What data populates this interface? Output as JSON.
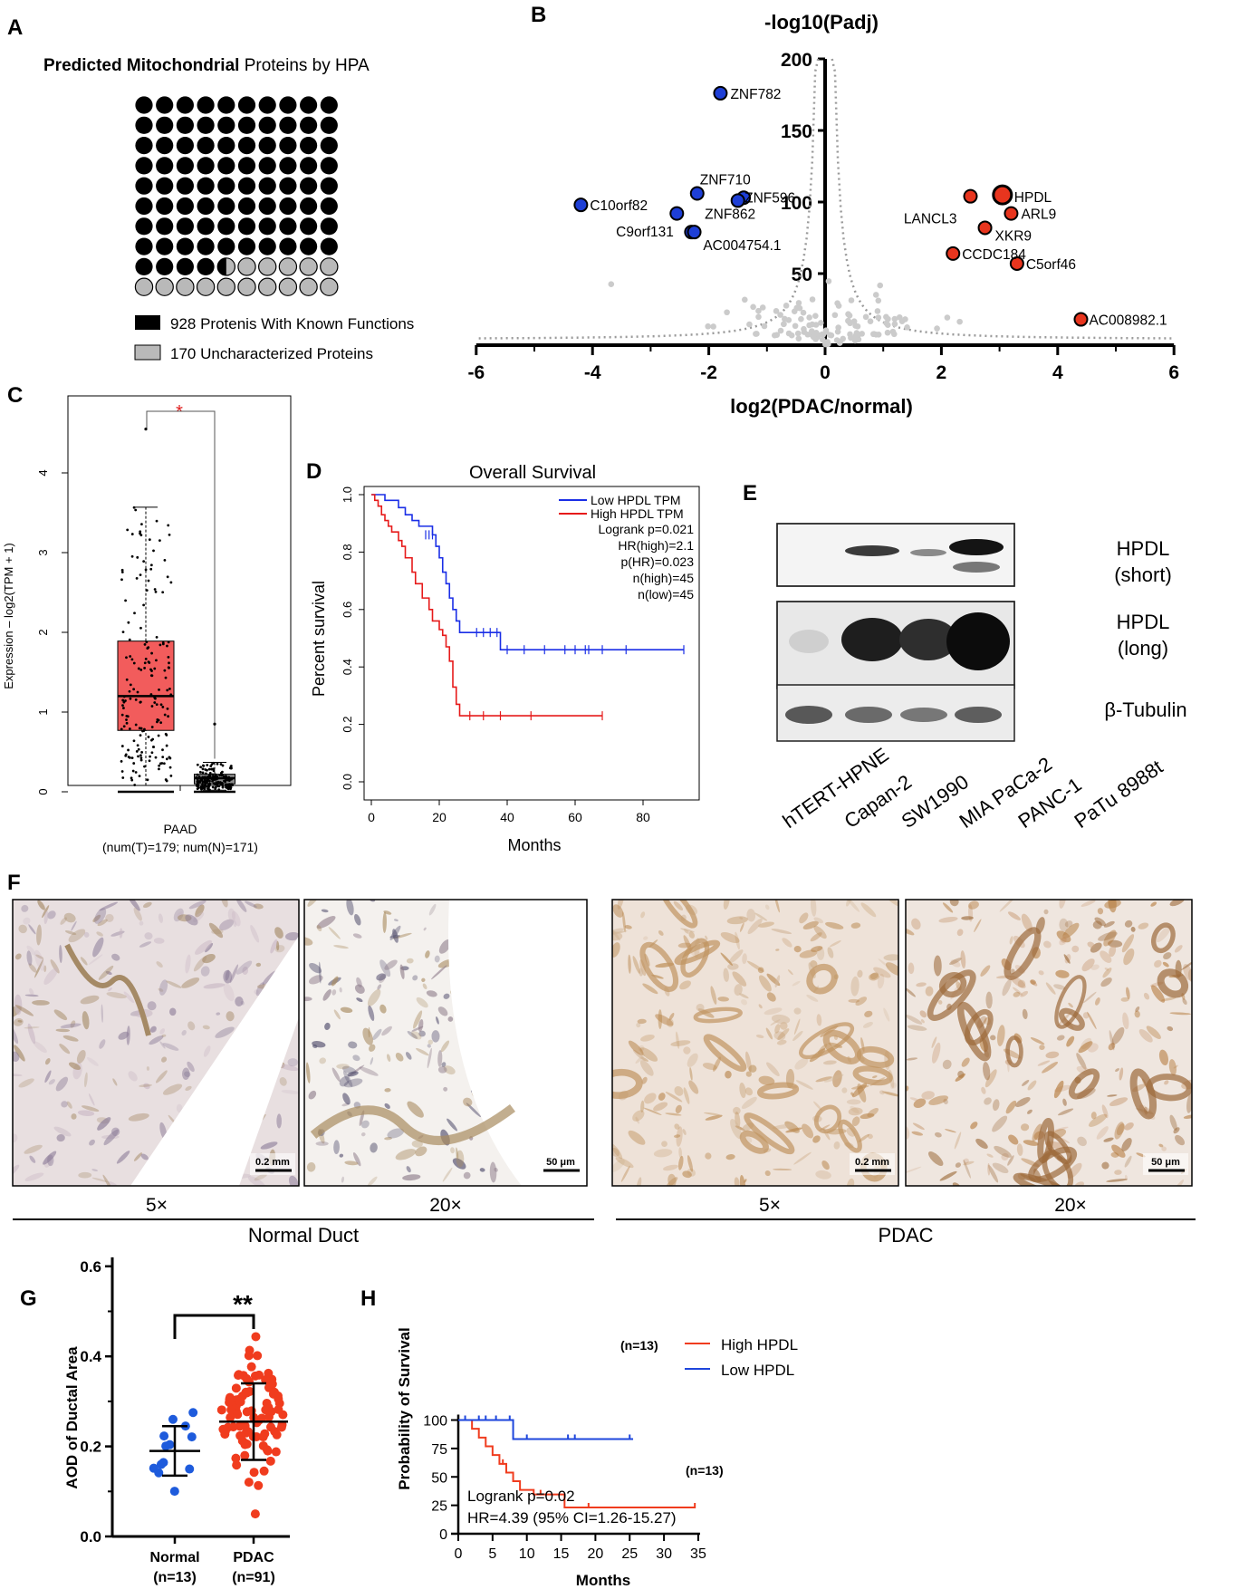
{
  "panels": {
    "A": "A",
    "B": "B",
    "C": "C",
    "D": "D",
    "E": "E",
    "F": "F",
    "G": "G",
    "H": "H"
  },
  "panel_a": {
    "title_bold": "Predicted Mitochondrial",
    "title_rest": " Proteins by HPA",
    "legend_known": "928 Protenis With Known Functions",
    "legend_unchar": "170 Uncharacterized Proteins",
    "known_count": 928,
    "unchar_count": 170,
    "known_color": "#000000",
    "unchar_color": "#b9b9b9"
  },
  "panel_b": {
    "ylabel": "-log10(Padj)",
    "xlabel": "log2(PDAC/normal)",
    "xticks": [
      "-6",
      "-4",
      "-2",
      "0",
      "2",
      "4",
      "6"
    ],
    "yticks": [
      "200",
      "150",
      "100",
      "50"
    ],
    "down_color": "#1e3fd6",
    "up_color": "#e8351e",
    "down_genes": [
      {
        "label": "ZNF782",
        "x": -1.8,
        "y": 176
      },
      {
        "label": "ZNF710",
        "x": -2.2,
        "y": 106
      },
      {
        "label": "ZNF596",
        "x": -1.4,
        "y": 103
      },
      {
        "label": "",
        "x": -1.5,
        "y": 101
      },
      {
        "label": "C10orf82",
        "x": -4.2,
        "y": 98
      },
      {
        "label": "ZNF862",
        "x": -2.55,
        "y": 92
      },
      {
        "label": "C9orf131",
        "x": -2.3,
        "y": 79
      },
      {
        "label": "AC004754.1",
        "x": -2.25,
        "y": 79
      }
    ],
    "up_genes": [
      {
        "label": "HPDL",
        "x": 3.05,
        "y": 105
      },
      {
        "label": "LANCL3",
        "x": 2.5,
        "y": 104
      },
      {
        "label": "ARL9",
        "x": 3.2,
        "y": 92
      },
      {
        "label": "XKR9",
        "x": 2.75,
        "y": 82
      },
      {
        "label": "CCDC184",
        "x": 2.2,
        "y": 64
      },
      {
        "label": "C5orf46",
        "x": 3.3,
        "y": 57
      },
      {
        "label": "AC008982.1",
        "x": 4.4,
        "y": 18
      }
    ]
  },
  "panel_c": {
    "ylabel": "Expression – log2(TPM + 1)",
    "xlabel": "PAAD",
    "xsub": "(num(T)=179; num(N)=171)",
    "yticks": [
      "0",
      "1",
      "2",
      "3",
      "4"
    ],
    "star": "*",
    "tumor": {
      "median": 1.2,
      "q1": 0.77,
      "q3": 1.89,
      "whisker_low": 0.08,
      "whisker_high": 3.57,
      "color": "#f25c5c",
      "n": 179,
      "max": 4.55
    },
    "normal": {
      "median": 0.17,
      "q1": 0.1,
      "q3": 0.22,
      "whisker_low": 0.02,
      "whisker_high": 0.37,
      "color": "#8c8c8c",
      "n": 171,
      "max": 0.85
    }
  },
  "panel_d": {
    "title": "Overall Survival",
    "ylabel": "Percent survival",
    "xlabel": "Months",
    "xticks": [
      "0",
      "20",
      "40",
      "60",
      "80"
    ],
    "yticks": [
      "0.0",
      "0.2",
      "0.4",
      "0.6",
      "0.8",
      "1.0"
    ],
    "legend": {
      "low": "Low HPDL TPM",
      "high": "High HPDL TPM",
      "stats": [
        "Logrank p=0.021",
        "HR(high)=2.1",
        "p(HR)=0.023",
        "n(high)=45",
        "n(low)=45"
      ]
    },
    "low_color": "#1a2ee6",
    "high_color": "#e61a1a",
    "low_curve": [
      [
        0,
        1.0
      ],
      [
        4,
        0.98
      ],
      [
        8,
        0.955
      ],
      [
        10,
        0.93
      ],
      [
        12,
        0.91
      ],
      [
        14,
        0.89
      ],
      [
        18,
        0.86
      ],
      [
        19,
        0.82
      ],
      [
        20,
        0.78
      ],
      [
        21,
        0.73
      ],
      [
        22,
        0.69
      ],
      [
        23,
        0.64
      ],
      [
        24,
        0.6
      ],
      [
        25,
        0.56
      ],
      [
        26,
        0.52
      ],
      [
        36,
        0.52
      ],
      [
        38,
        0.46
      ],
      [
        92,
        0.46
      ]
    ],
    "high_curve": [
      [
        0,
        1.0
      ],
      [
        1,
        0.98
      ],
      [
        2,
        0.96
      ],
      [
        3,
        0.93
      ],
      [
        4,
        0.91
      ],
      [
        5,
        0.89
      ],
      [
        6,
        0.87
      ],
      [
        8,
        0.84
      ],
      [
        9,
        0.82
      ],
      [
        10,
        0.78
      ],
      [
        12,
        0.73
      ],
      [
        13,
        0.69
      ],
      [
        15,
        0.64
      ],
      [
        17,
        0.6
      ],
      [
        18,
        0.56
      ],
      [
        20,
        0.53
      ],
      [
        21,
        0.51
      ],
      [
        22,
        0.47
      ],
      [
        23,
        0.42
      ],
      [
        24,
        0.33
      ],
      [
        25,
        0.27
      ],
      [
        26,
        0.23
      ],
      [
        68,
        0.23
      ]
    ]
  },
  "panel_e": {
    "labels": [
      "HPDL",
      "(short)",
      "HPDL",
      "(long)",
      "β-Tubulin"
    ],
    "lanes": [
      "hTERT-HPNE",
      "Capan-2",
      "SW1990",
      "MIA PaCa-2",
      "PANC-1",
      "PaTu 8988t"
    ]
  },
  "panel_f": {
    "mags": [
      "5×",
      "20×",
      "5×",
      "20×"
    ],
    "scales": [
      "0.2 mm",
      "50 μm",
      "0.2 mm",
      "50 μm"
    ],
    "groups": [
      "Normal Duct",
      "PDAC"
    ]
  },
  "panel_g": {
    "ylabel": "AOD of Ductal Area",
    "yticks": [
      "0.0",
      "0.2",
      "0.4",
      "0.6"
    ],
    "sig": "**",
    "groups": [
      {
        "name": "Normal",
        "n": "(n=13)",
        "mean": 0.19,
        "sd": 0.055,
        "color": "#1e5bdc",
        "count": 13
      },
      {
        "name": "PDAC",
        "n": "(n=91)",
        "mean": 0.255,
        "sd": 0.085,
        "color": "#f03c1e",
        "count": 91
      }
    ]
  },
  "panel_h": {
    "ylabel": "Probability of Survival",
    "xlabel": "Months",
    "xticks": [
      "0",
      "5",
      "10",
      "15",
      "20",
      "25",
      "30",
      "35"
    ],
    "yticks": [
      "0",
      "25",
      "50",
      "75",
      "100"
    ],
    "legend_high": "High HPDL",
    "legend_low": "Low HPDL",
    "n_high": "(n=13)",
    "n_low": "(n=13)",
    "logrank": "Logrank p=0.02",
    "hr": "HR=4.39 (95% CI=1.26-15.27)",
    "high_color": "#f03c1e",
    "low_color": "#1e46dc",
    "high_curve": [
      [
        0,
        100
      ],
      [
        2,
        100
      ],
      [
        2,
        92.3
      ],
      [
        3,
        84.6
      ],
      [
        4,
        76.9
      ],
      [
        5,
        69.2
      ],
      [
        6,
        61.5
      ],
      [
        7,
        53.8
      ],
      [
        8,
        46.2
      ],
      [
        9,
        38.5
      ],
      [
        11,
        34.6
      ],
      [
        15.5,
        34.6
      ],
      [
        15.5,
        23.1
      ],
      [
        34.5,
        23.1
      ]
    ],
    "low_curve": [
      [
        0,
        100
      ],
      [
        8,
        100
      ],
      [
        8,
        83.3
      ],
      [
        25.5,
        83.3
      ]
    ]
  }
}
